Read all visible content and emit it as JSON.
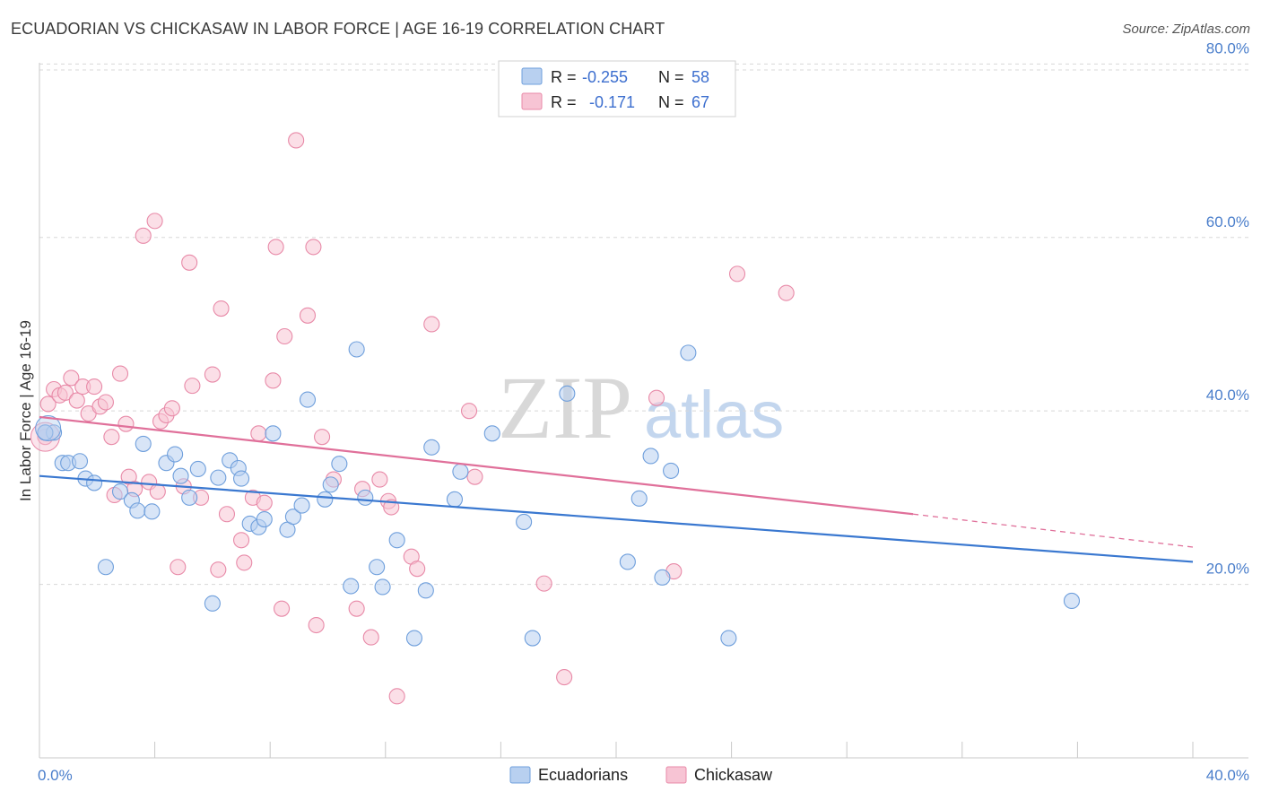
{
  "title": "ECUADORIAN VS CHICKASAW IN LABOR FORCE | AGE 16-19 CORRELATION CHART",
  "source": "Source: ZipAtlas.com",
  "watermark": {
    "zip": "ZIP",
    "atlas": "atlas"
  },
  "colors": {
    "blue_fill": "#b8d0f0",
    "blue_stroke": "#6f9fdc",
    "blue_line": "#3a78d0",
    "pink_fill": "#f7c4d4",
    "pink_stroke": "#e88aa8",
    "pink_line": "#e0709a",
    "grid": "#d8d8d8",
    "tick_text": "#4a7ecb"
  },
  "stats": {
    "r_label": "R =",
    "n_label": "N =",
    "blue": {
      "r": "-0.255",
      "n": "58"
    },
    "pink": {
      "r": "-0.171",
      "n": "67"
    }
  },
  "chart_data": {
    "type": "scatter",
    "xlabel": "",
    "ylabel": "In Labor Force | Age 16-19",
    "xlim": [
      0,
      40
    ],
    "ylim": [
      0,
      82
    ],
    "x_tick_labels": [
      {
        "value": 0,
        "label": "0.0%"
      },
      {
        "value": 40,
        "label": "40.0%"
      }
    ],
    "y_ticks": [
      {
        "value": 20,
        "label": "20.0%"
      },
      {
        "value": 40,
        "label": "40.0%"
      },
      {
        "value": 60,
        "label": "60.0%"
      },
      {
        "value": 80,
        "label": "80.0%"
      }
    ],
    "legend": [
      "Ecuadorians",
      "Chickasaw"
    ],
    "series": [
      {
        "name": "Ecuadorians",
        "color": "blue",
        "trend": {
          "x0": 0,
          "y0": 32.5,
          "x1": 40,
          "y1": 22.6
        },
        "points": [
          [
            0.2,
            37.5
          ],
          [
            0.5,
            37.5
          ],
          [
            0.8,
            34
          ],
          [
            1,
            34
          ],
          [
            1.4,
            34.2
          ],
          [
            1.6,
            32.2
          ],
          [
            1.9,
            31.7
          ],
          [
            2.3,
            22
          ],
          [
            2.8,
            30.7
          ],
          [
            3.2,
            29.7
          ],
          [
            3.4,
            28.5
          ],
          [
            3.6,
            36.2
          ],
          [
            3.9,
            28.4
          ],
          [
            4.4,
            34
          ],
          [
            4.7,
            35
          ],
          [
            4.9,
            32.5
          ],
          [
            5.2,
            30
          ],
          [
            5.5,
            33.3
          ],
          [
            6,
            17.8
          ],
          [
            6.2,
            32.3
          ],
          [
            6.6,
            34.3
          ],
          [
            6.9,
            33.4
          ],
          [
            7,
            32.2
          ],
          [
            7.3,
            27
          ],
          [
            7.6,
            26.6
          ],
          [
            7.8,
            27.5
          ],
          [
            8.1,
            37.4
          ],
          [
            8.6,
            26.3
          ],
          [
            8.8,
            27.8
          ],
          [
            9.1,
            29.1
          ],
          [
            9.3,
            41.3
          ],
          [
            9.9,
            29.8
          ],
          [
            10.1,
            31.5
          ],
          [
            10.4,
            33.9
          ],
          [
            10.8,
            19.8
          ],
          [
            11.3,
            30
          ],
          [
            11.7,
            22
          ],
          [
            11.9,
            19.7
          ],
          [
            12.4,
            25.1
          ],
          [
            13,
            13.8
          ],
          [
            13.4,
            19.3
          ],
          [
            13.6,
            35.8
          ],
          [
            14.4,
            29.8
          ],
          [
            14.6,
            33
          ],
          [
            15.7,
            37.4
          ],
          [
            16.8,
            27.2
          ],
          [
            17.1,
            13.8
          ],
          [
            18.3,
            42
          ],
          [
            20.4,
            22.6
          ],
          [
            20.8,
            29.9
          ],
          [
            21.2,
            34.8
          ],
          [
            21.6,
            20.8
          ],
          [
            21.9,
            33.1
          ],
          [
            22.5,
            46.7
          ],
          [
            23.9,
            13.8
          ],
          [
            11,
            47.1
          ],
          [
            35.8,
            18.1
          ],
          [
            0.2,
            37.5
          ]
        ]
      },
      {
        "name": "Chickasaw",
        "color": "pink",
        "trend": {
          "x0": 0,
          "y0": 39.3,
          "x1": 30.3,
          "y1": 28.1
        },
        "trend_dashed": {
          "x0": 30.3,
          "y0": 28.1,
          "x1": 40,
          "y1": 24.3
        },
        "points": [
          [
            0.2,
            37
          ],
          [
            0.3,
            40.8
          ],
          [
            0.5,
            42.5
          ],
          [
            0.7,
            41.8
          ],
          [
            0.9,
            42.1
          ],
          [
            1.1,
            43.8
          ],
          [
            1.3,
            41.2
          ],
          [
            1.5,
            42.8
          ],
          [
            1.7,
            39.7
          ],
          [
            1.9,
            42.8
          ],
          [
            2.1,
            40.5
          ],
          [
            2.3,
            41
          ],
          [
            2.5,
            37
          ],
          [
            2.6,
            30.3
          ],
          [
            2.8,
            44.3
          ],
          [
            3,
            38.5
          ],
          [
            3.1,
            32.4
          ],
          [
            3.3,
            31
          ],
          [
            3.6,
            60.2
          ],
          [
            3.8,
            31.8
          ],
          [
            4,
            61.9
          ],
          [
            4.1,
            30.7
          ],
          [
            4.2,
            38.8
          ],
          [
            4.4,
            39.5
          ],
          [
            4.6,
            40.3
          ],
          [
            4.8,
            22
          ],
          [
            5,
            31.3
          ],
          [
            5.2,
            57.1
          ],
          [
            5.3,
            42.9
          ],
          [
            5.6,
            30
          ],
          [
            6,
            44.2
          ],
          [
            6.2,
            21.7
          ],
          [
            6.3,
            51.8
          ],
          [
            6.5,
            28.1
          ],
          [
            7,
            25.1
          ],
          [
            7.1,
            22.5
          ],
          [
            7.4,
            30
          ],
          [
            7.6,
            37.4
          ],
          [
            7.8,
            29.4
          ],
          [
            8.1,
            43.5
          ],
          [
            8.2,
            58.9
          ],
          [
            8.4,
            17.2
          ],
          [
            8.5,
            48.6
          ],
          [
            8.9,
            71.2
          ],
          [
            9.3,
            51
          ],
          [
            9.5,
            58.9
          ],
          [
            9.6,
            15.3
          ],
          [
            9.8,
            37
          ],
          [
            10.2,
            32.1
          ],
          [
            11,
            17.2
          ],
          [
            11.2,
            31
          ],
          [
            11.5,
            13.9
          ],
          [
            11.8,
            32.1
          ],
          [
            12.1,
            29.6
          ],
          [
            12.2,
            28.9
          ],
          [
            12.4,
            7.1
          ],
          [
            12.9,
            23.2
          ],
          [
            13.1,
            21.8
          ],
          [
            13.6,
            50
          ],
          [
            14.9,
            40
          ],
          [
            15.1,
            32.4
          ],
          [
            17.5,
            20.1
          ],
          [
            18.2,
            9.3
          ],
          [
            21.4,
            41.5
          ],
          [
            22,
            21.5
          ],
          [
            24.2,
            55.8
          ],
          [
            25.9,
            53.6
          ]
        ]
      }
    ]
  }
}
